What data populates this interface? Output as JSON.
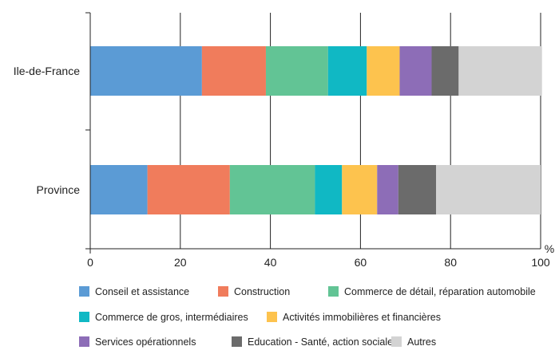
{
  "chart_data": {
    "type": "bar",
    "orientation": "horizontal",
    "stacked": true,
    "categories": [
      "Ile-de-France",
      "Province"
    ],
    "series": [
      {
        "name": "Conseil et assistance",
        "color": "#5b9bd5",
        "values": [
          24.8,
          12.7
        ]
      },
      {
        "name": "Construction",
        "color": "#f07c5c",
        "values": [
          14.2,
          18.3
        ]
      },
      {
        "name": "Commerce de détail, réparation automobile",
        "color": "#62c495",
        "values": [
          13.8,
          18.9
        ]
      },
      {
        "name": "Commerce de gros, intermédiaires",
        "color": "#10b8c4",
        "values": [
          8.6,
          6.0
        ]
      },
      {
        "name": "Activités immobilières et financières",
        "color": "#fdc34e",
        "values": [
          7.3,
          7.8
        ]
      },
      {
        "name": "Services opérationnels",
        "color": "#8d6db7",
        "values": [
          7.1,
          4.7
        ]
      },
      {
        "name": "Education - Santé, action sociale",
        "color": "#6b6b6b",
        "values": [
          6.0,
          8.4
        ]
      },
      {
        "name": "Autres",
        "color": "#d3d3d3",
        "values": [
          18.5,
          23.2
        ]
      }
    ],
    "x_ticks": [
      "0",
      "20",
      "40",
      "60",
      "80",
      "100"
    ],
    "xlim": [
      0,
      100
    ],
    "xunit": "%",
    "grid": "vertical",
    "legend_position": "bottom"
  }
}
